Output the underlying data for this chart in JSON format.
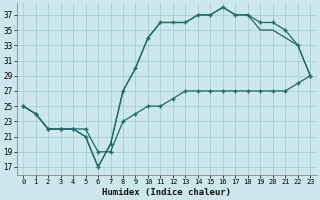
{
  "title": "",
  "xlabel": "Humidex (Indice chaleur)",
  "ylabel": "",
  "bg_color": "#cce8ec",
  "grid_color": "#a8cdd2",
  "line_color": "#1a6b6b",
  "xlim": [
    -0.5,
    23.5
  ],
  "ylim": [
    16.0,
    38.5
  ],
  "xticks": [
    0,
    1,
    2,
    3,
    4,
    5,
    6,
    7,
    8,
    9,
    10,
    11,
    12,
    13,
    14,
    15,
    16,
    17,
    18,
    19,
    20,
    21,
    22,
    23
  ],
  "yticks": [
    17,
    19,
    21,
    23,
    25,
    27,
    29,
    31,
    33,
    35,
    37
  ],
  "line1_x": [
    0,
    1,
    2,
    3,
    4,
    5,
    6,
    7,
    8,
    9,
    10,
    11,
    12,
    13,
    14,
    15,
    16,
    17,
    18,
    19,
    20,
    21,
    22,
    23
  ],
  "line1_y": [
    25,
    24,
    22,
    22,
    22,
    21,
    17,
    20,
    27,
    30,
    34,
    36,
    36,
    36,
    37,
    37,
    38,
    37,
    37,
    36,
    36,
    35,
    33,
    29
  ],
  "line2_x": [
    0,
    1,
    2,
    3,
    4,
    5,
    6,
    7,
    8,
    9,
    10,
    11,
    12,
    13,
    14,
    15,
    16,
    17,
    18,
    19,
    20,
    21,
    22,
    23
  ],
  "line2_y": [
    25,
    24,
    22,
    22,
    22,
    21,
    17,
    20,
    27,
    30,
    34,
    36,
    36,
    36,
    37,
    37,
    38,
    37,
    37,
    35,
    35,
    34,
    33,
    29
  ],
  "line3_x": [
    0,
    1,
    2,
    3,
    4,
    5,
    6,
    7,
    8,
    9,
    10,
    11,
    12,
    13,
    14,
    15,
    16,
    17,
    18,
    19,
    20,
    21,
    22,
    23
  ],
  "line3_y": [
    25,
    24,
    22,
    22,
    22,
    22,
    19,
    19,
    23,
    24,
    25,
    25,
    26,
    27,
    27,
    27,
    27,
    27,
    27,
    27,
    27,
    27,
    28,
    29
  ]
}
